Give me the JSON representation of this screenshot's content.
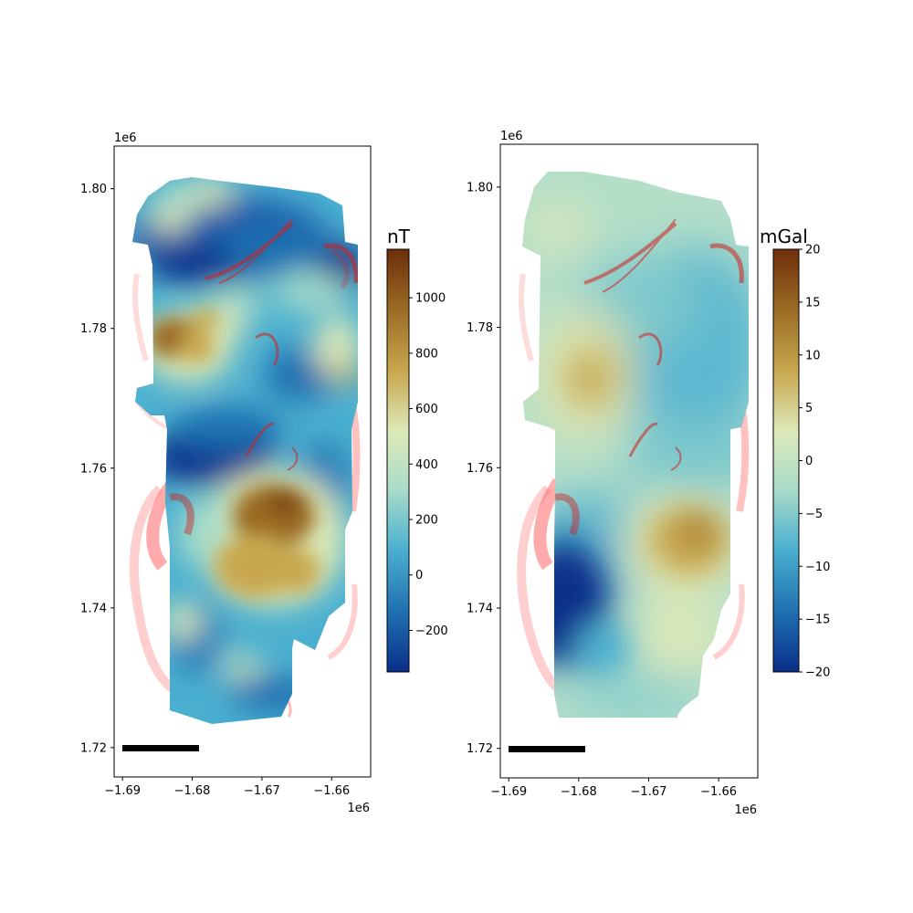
{
  "chart_data": [
    {
      "type": "heatmap",
      "title": "",
      "xlabel": "",
      "ylabel": "",
      "x_offset_label": "1e6",
      "y_offset_label": "1e6",
      "xticks": [
        -1.69,
        -1.68,
        -1.67,
        -1.66
      ],
      "xtick_labels": [
        "−1.69",
        "−1.68",
        "−1.67",
        "−1.66"
      ],
      "yticks": [
        1.72,
        1.74,
        1.76,
        1.78,
        1.8
      ],
      "ytick_labels": [
        "1.72",
        "1.74",
        "1.76",
        "1.78",
        "1.80"
      ],
      "xlim": [
        -1.6912,
        -1.6544
      ],
      "ylim": [
        1.7158,
        1.8061
      ],
      "colorbar": {
        "label": "nT",
        "ticks": [
          -200,
          0,
          200,
          400,
          600,
          800,
          1000
        ],
        "tick_labels": [
          "−200",
          "0",
          "200",
          "400",
          "600",
          "800",
          "1000"
        ],
        "range": [
          -350,
          1175
        ]
      },
      "colormap": [
        "#0a2f8a",
        "#1f6fb0",
        "#4bb0d0",
        "#a8dcc8",
        "#dde9b8",
        "#c8a850",
        "#9a6a24",
        "#6e2e0a"
      ],
      "anomaly_highs": [
        [
          -1.681,
          1.779
        ],
        [
          -1.6665,
          1.7545
        ],
        [
          -1.6718,
          1.7465
        ],
        [
          -1.6838,
          1.7745
        ],
        [
          -1.6768,
          1.781
        ]
      ],
      "anomaly_lows": [
        [
          -1.677,
          1.789
        ],
        [
          -1.6702,
          1.762
        ],
        [
          -1.6595,
          1.7885
        ],
        [
          -1.6665,
          1.728
        ],
        [
          -1.6768,
          1.765
        ]
      ],
      "overlay_color": "#ff0000",
      "scale_bar": {
        "x_start": -1.6895,
        "x_end": -1.6795,
        "y": 1.72
      }
    },
    {
      "type": "heatmap",
      "title": "",
      "xlabel": "",
      "ylabel": "",
      "x_offset_label": "1e6",
      "y_offset_label": "1e6",
      "xticks": [
        -1.69,
        -1.68,
        -1.67,
        -1.66
      ],
      "xtick_labels": [
        "−1.69",
        "−1.68",
        "−1.67",
        "−1.66"
      ],
      "yticks": [
        1.72,
        1.74,
        1.76,
        1.78,
        1.8
      ],
      "ytick_labels": [
        "1.72",
        "1.74",
        "1.76",
        "1.78",
        "1.80"
      ],
      "xlim": [
        -1.6912,
        -1.6544
      ],
      "ylim": [
        1.7158,
        1.8061
      ],
      "colorbar": {
        "label": "mGal",
        "ticks": [
          -20,
          -15,
          -10,
          -5,
          0,
          5,
          10,
          15,
          20
        ],
        "tick_labels": [
          "−20",
          "−15",
          "−10",
          "−5",
          "0",
          "5",
          "10",
          "15",
          "20"
        ],
        "range": [
          -20,
          20
        ]
      },
      "colormap": [
        "#0a2f8a",
        "#1f6fb0",
        "#4bb0d0",
        "#a8dcc8",
        "#dde9b8",
        "#c8a850",
        "#9a6a24",
        "#6e2e0a"
      ],
      "anomaly_highs": [
        [
          -1.664,
          1.749
        ],
        [
          -1.676,
          1.773
        ],
        [
          -1.6715,
          1.737
        ]
      ],
      "anomaly_lows": [
        [
          -1.6815,
          1.739
        ],
        [
          -1.663,
          1.771
        ]
      ],
      "overlay_color": "#ff0000",
      "scale_bar": {
        "x_start": -1.6895,
        "x_end": -1.6795,
        "y": 1.72
      }
    }
  ]
}
